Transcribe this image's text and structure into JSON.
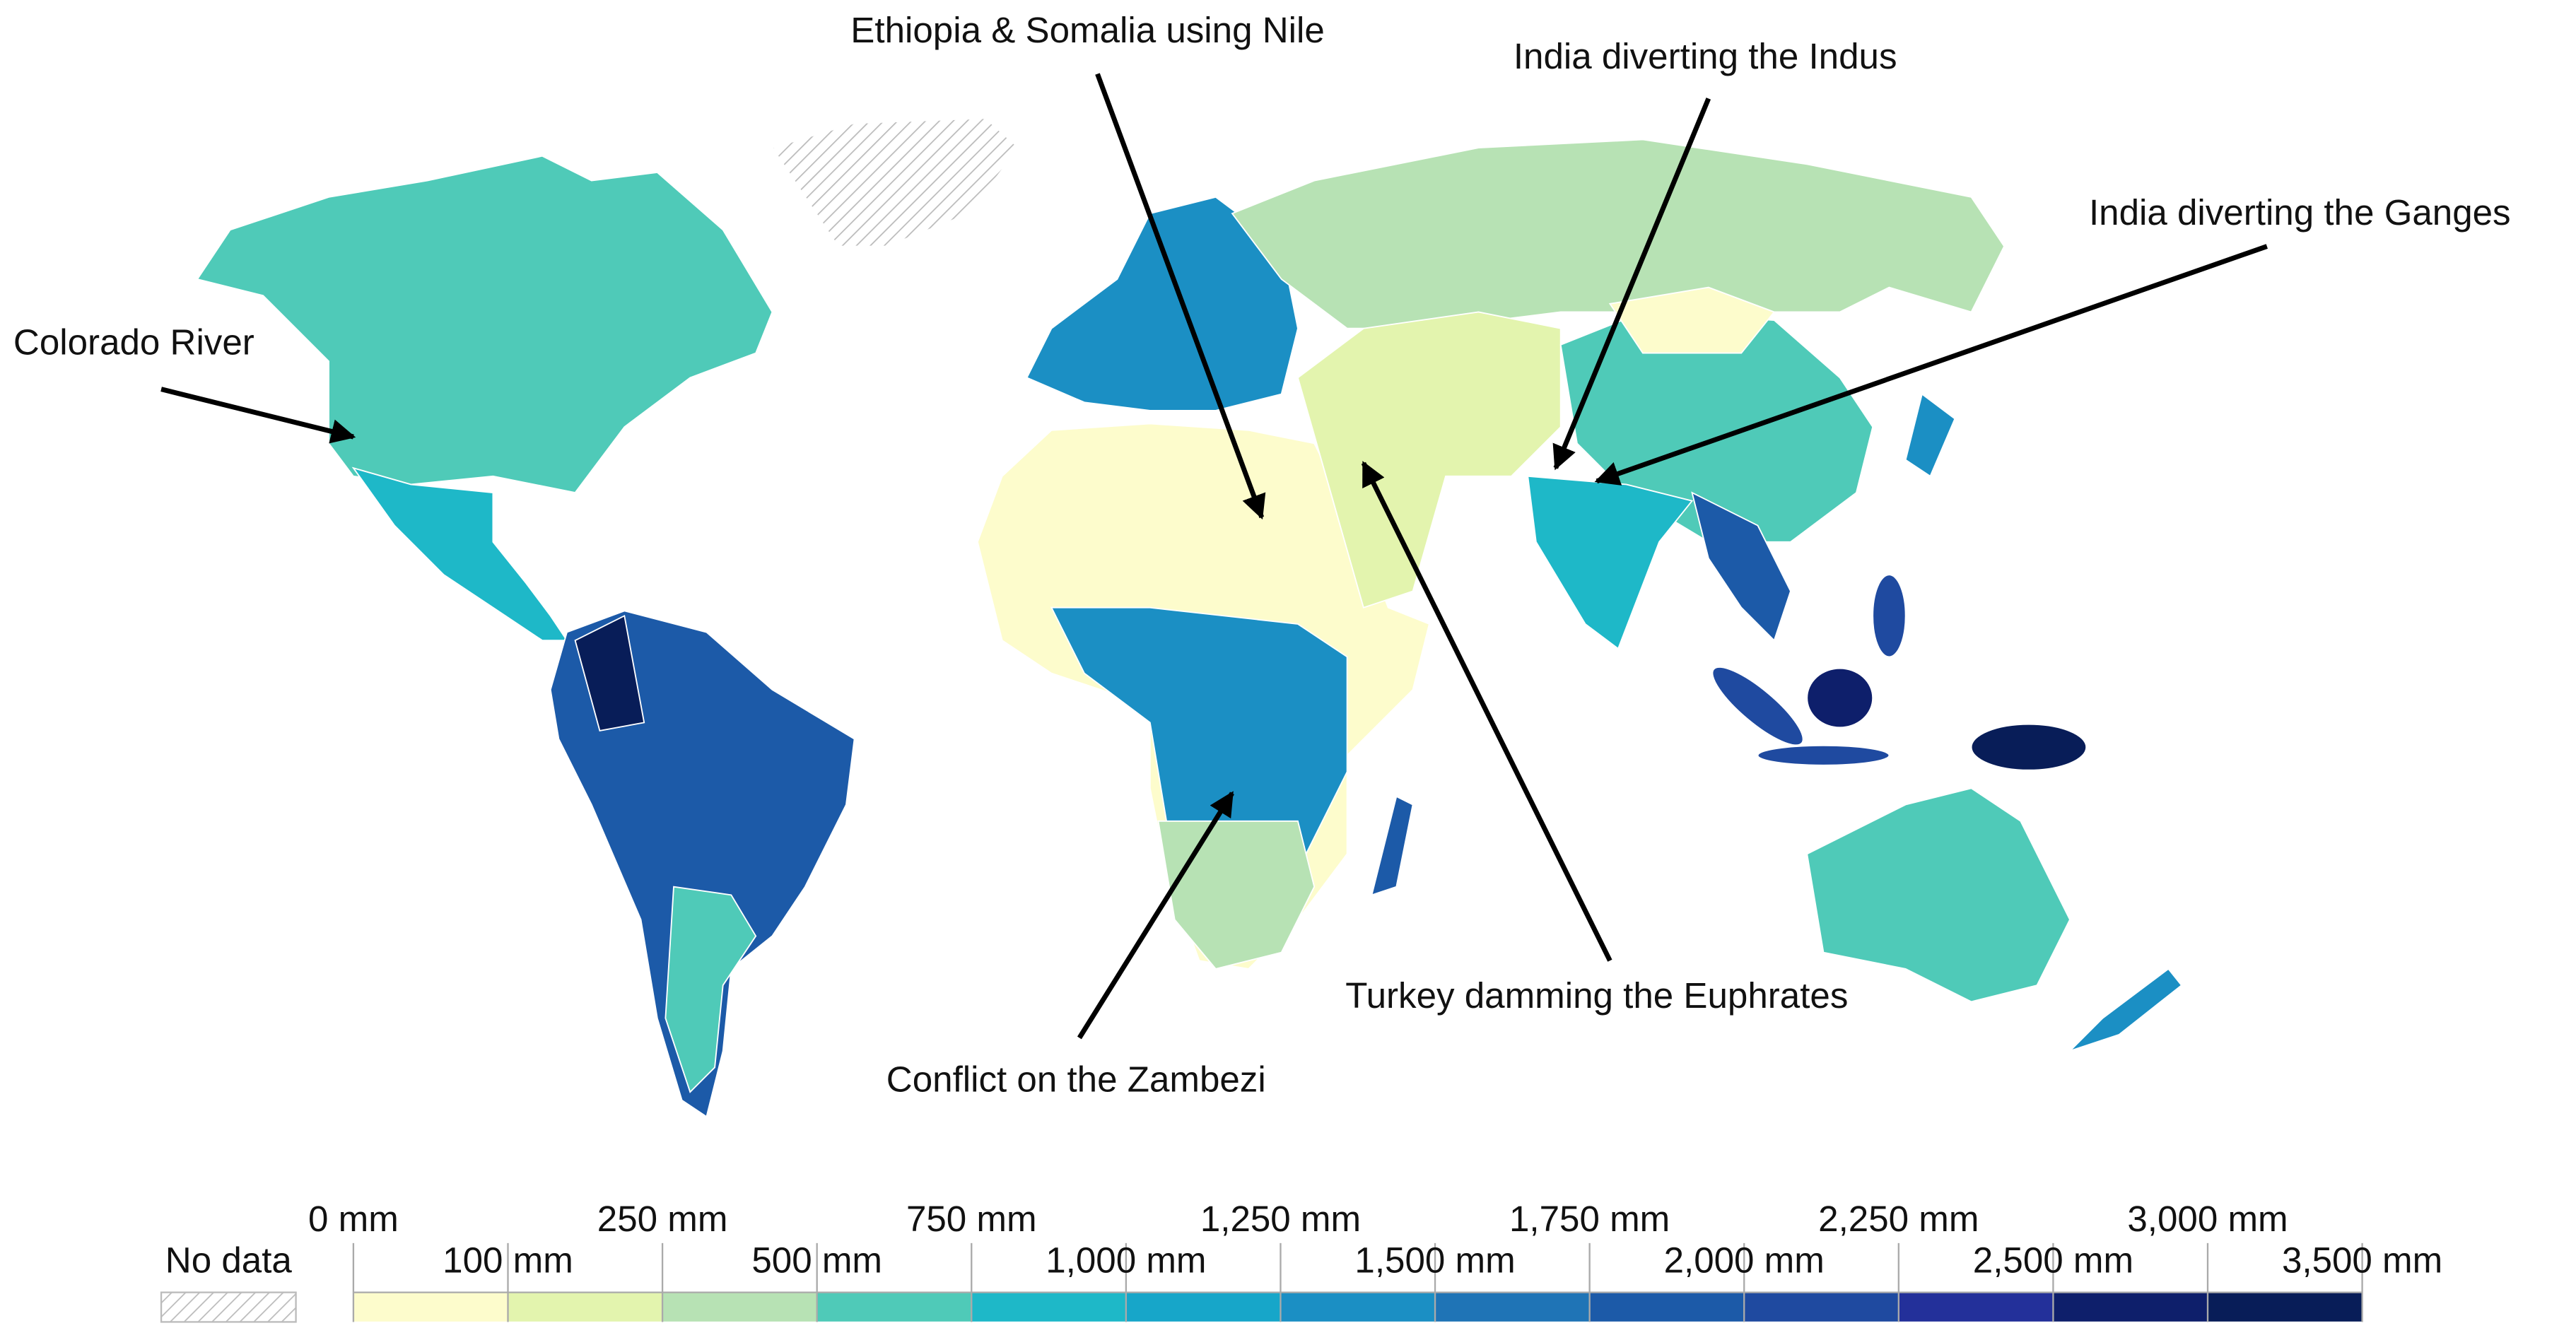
{
  "annotations": [
    "Ethiopia & Somalia using Nile",
    "India diverting the Indus",
    "India diverting the Ganges",
    "Colorado River",
    "Turkey damming the Euphrates",
    "Conflict on the Zambezi"
  ],
  "legend": {
    "no_data": "No data",
    "ticks": [
      {
        "value": 0,
        "label": "0 mm"
      },
      {
        "value": 100,
        "label": "100 mm"
      },
      {
        "value": 250,
        "label": "250 mm"
      },
      {
        "value": 500,
        "label": "500 mm"
      },
      {
        "value": 750,
        "label": "750 mm"
      },
      {
        "value": 1000,
        "label": "1,000 mm"
      },
      {
        "value": 1250,
        "label": "1,250 mm"
      },
      {
        "value": 1500,
        "label": "1,500 mm"
      },
      {
        "value": 1750,
        "label": "1,750 mm"
      },
      {
        "value": 2000,
        "label": "2,000 mm"
      },
      {
        "value": 2250,
        "label": "2,250 mm"
      },
      {
        "value": 2500,
        "label": "2,500 mm"
      },
      {
        "value": 3000,
        "label": "3,000 mm"
      },
      {
        "value": 3500,
        "label": "3,500 mm"
      }
    ],
    "colors": [
      "#fdfccc",
      "#e3f4ae",
      "#b7e2b4",
      "#4fcab8",
      "#1eb8c8",
      "#17a6c9",
      "#1b8fc4",
      "#1f74b6",
      "#1c5aa8",
      "#1f4aa0",
      "#23309a",
      "#0e1f6b",
      "#081d58"
    ]
  }
}
